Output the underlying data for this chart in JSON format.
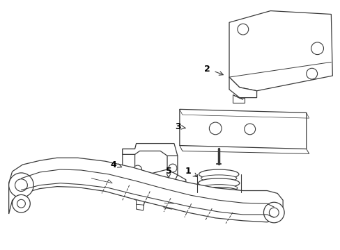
{
  "background_color": "#ffffff",
  "line_color": "#3a3a3a",
  "label_color": "#000000",
  "figsize": [
    4.89,
    3.6
  ],
  "dpi": 100
}
